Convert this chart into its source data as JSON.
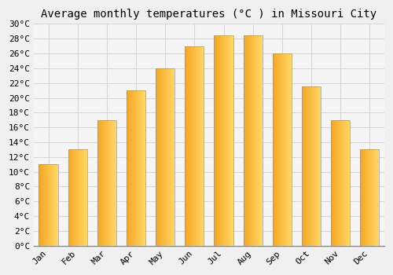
{
  "title": "Average monthly temperatures (°C ) in Missouri City",
  "months": [
    "Jan",
    "Feb",
    "Mar",
    "Apr",
    "May",
    "Jun",
    "Jul",
    "Aug",
    "Sep",
    "Oct",
    "Nov",
    "Dec"
  ],
  "values": [
    11,
    13,
    17,
    21,
    24,
    27,
    28.5,
    28.5,
    26,
    21.5,
    17,
    13
  ],
  "bar_color_left": "#F5A623",
  "bar_color_right": "#FFD966",
  "bar_edge_color": "#999999",
  "ylim": [
    0,
    30
  ],
  "ytick_step": 2,
  "background_color": "#f0f0f0",
  "plot_bg_color": "#f5f5f5",
  "grid_color": "#d8d8d8",
  "title_fontsize": 10,
  "tick_fontsize": 8,
  "font_family": "monospace",
  "bar_width": 0.65
}
